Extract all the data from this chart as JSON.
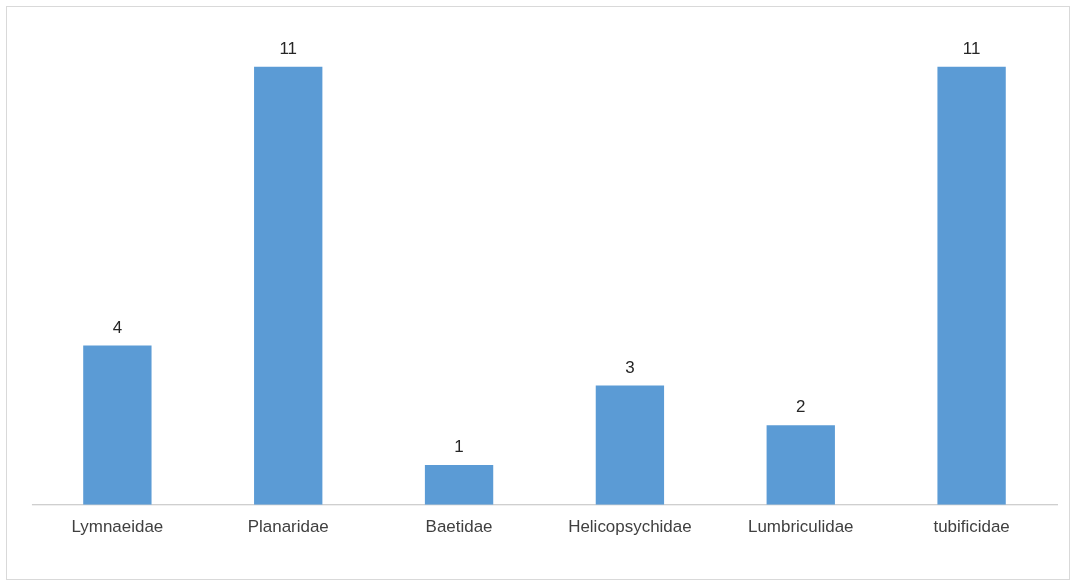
{
  "chart_data": {
    "type": "bar",
    "categories": [
      "Lymnaeidae",
      "Planaridae",
      "Baetidae",
      "Helicopsychidae",
      "Lumbriculidae",
      "tubificidae"
    ],
    "values": [
      4,
      11,
      1,
      3,
      2,
      11
    ],
    "color": "#5b9bd5",
    "data_labels": true,
    "grid": false,
    "legend": false
  }
}
